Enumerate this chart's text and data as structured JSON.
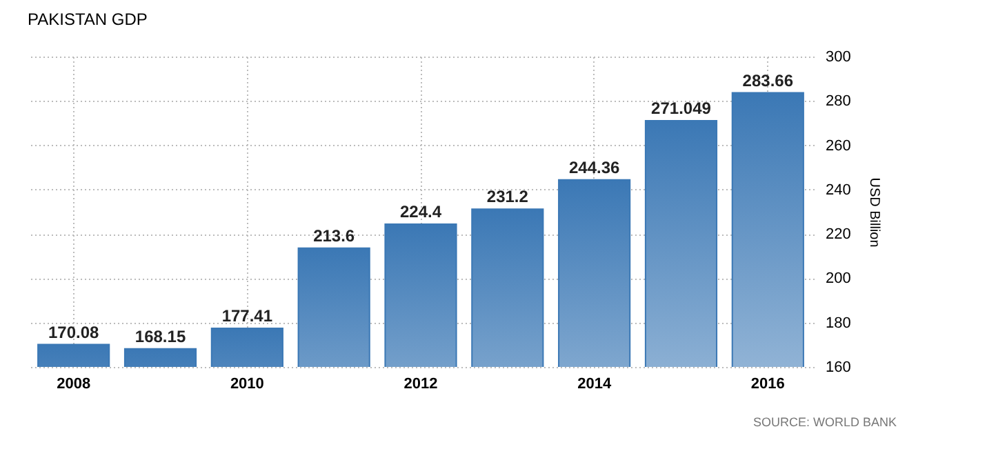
{
  "chart_data": {
    "type": "bar",
    "title": "PAKISTAN GDP",
    "categories": [
      "2008",
      null,
      "2010",
      null,
      "2012",
      null,
      "2014",
      null,
      "2016"
    ],
    "values": [
      170.08,
      168.15,
      177.41,
      213.6,
      224.4,
      231.2,
      244.36,
      271.049,
      283.66
    ],
    "color": "#3b78b5",
    "ylim": [
      160,
      300
    ],
    "yticks": [
      160,
      180,
      200,
      220,
      240,
      260,
      280,
      300
    ],
    "ylabel": "USD Billion",
    "grid": true,
    "data_labels": true,
    "annotations": [
      "SOURCE: WORLD BANK"
    ]
  }
}
